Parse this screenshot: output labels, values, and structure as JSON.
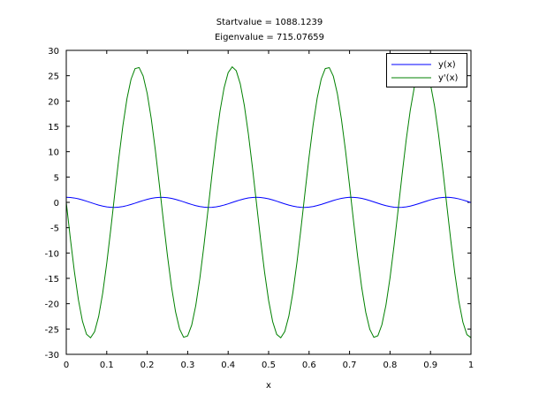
{
  "chart_data": {
    "type": "line",
    "title_lines": [
      "Startvalue =  1088.1239",
      "Eigenvalue = 715.07659"
    ],
    "xlabel": "x",
    "ylabel": "",
    "xlim": [
      0,
      1
    ],
    "ylim": [
      -30,
      30
    ],
    "xticks": [
      0,
      0.1,
      0.2,
      0.3,
      0.4,
      0.5,
      0.6,
      0.7,
      0.8,
      0.9,
      1
    ],
    "xtick_labels": [
      "0",
      "0.1",
      "0.2",
      "0.3",
      "0.4",
      "0.5",
      "0.6",
      "0.7",
      "0.8",
      "0.9",
      "1"
    ],
    "yticks": [
      30,
      25,
      20,
      15,
      10,
      5,
      0,
      -5,
      -10,
      -15,
      -20,
      -25,
      -30
    ],
    "ytick_labels": [
      "30",
      "25",
      "20",
      "15",
      "10",
      "5",
      "0",
      "-5",
      "-10",
      "-15",
      "-20",
      "-25",
      "-30"
    ],
    "grid": false,
    "legend_position": "top-right",
    "x_step": 0.01,
    "series": [
      {
        "name": "y(x)",
        "color": "#0000ff",
        "values": [
          1,
          0.964,
          0.86,
          0.695,
          0.48,
          0.231,
          -0.034,
          -0.297,
          -0.539,
          -0.742,
          -0.893,
          -0.98,
          -0.998,
          -0.944,
          -0.823,
          -0.643,
          -0.419,
          -0.164,
          0.103,
          0.362,
          0.595,
          0.787,
          0.922,
          0.991,
          0.991,
          0.919,
          0.783,
          0.59,
          0.356,
          0.096,
          -0.17,
          -0.425,
          -0.649,
          -0.827,
          -0.946,
          -0.998,
          -0.979,
          -0.89,
          -0.738,
          -0.534,
          -0.291,
          -0.028,
          0.237,
          0.486,
          0.699,
          0.864,
          0.966,
          1.0,
          0.963,
          0.857,
          0.69,
          0.474,
          0.225,
          -0.041,
          -0.303,
          -0.545,
          -0.747,
          -0.896,
          -0.982,
          -0.997,
          -0.942,
          -0.82,
          -0.639,
          -0.413,
          -0.158,
          0.109,
          0.368,
          0.6,
          0.791,
          0.924,
          0.992,
          0.99,
          0.917,
          0.779,
          0.585,
          0.35,
          0.09,
          -0.177,
          -0.431,
          -0.654,
          -0.831,
          -0.948,
          -0.998,
          -0.978,
          -0.887,
          -0.733,
          -0.528,
          -0.285,
          -0.021,
          0.244,
          0.491,
          0.704,
          0.867,
          0.968,
          1.0,
          0.961,
          0.854,
          0.685,
          0.469,
          0.219,
          -0.047
        ]
      },
      {
        "name": "y'(x)",
        "color": "#008000",
        "values": [
          0,
          -7.07,
          -13.64,
          -19.24,
          -23.47,
          -26.03,
          -26.73,
          -25.54,
          -22.53,
          -17.93,
          -12.03,
          -5.29,
          1.83,
          8.82,
          15.18,
          20.47,
          24.29,
          26.39,
          26.61,
          24.94,
          21.49,
          16.51,
          10.37,
          3.48,
          -3.65,
          -10.53,
          -16.65,
          -21.59,
          -25.0,
          -26.63,
          -26.36,
          -24.21,
          -20.35,
          -15.04,
          -8.65,
          -1.66,
          5.46,
          12.19,
          18.07,
          22.62,
          25.6,
          26.74,
          25.98,
          23.38,
          19.12,
          13.49,
          6.91,
          -0.17,
          -7.24,
          -13.79,
          -19.36,
          -23.55,
          -26.06,
          -26.73,
          -25.49,
          -22.44,
          -17.79,
          -11.88,
          -5.12,
          2.0,
          8.99,
          15.32,
          20.57,
          24.36,
          26.41,
          26.59,
          24.88,
          21.4,
          16.37,
          10.21,
          3.31,
          -3.82,
          -10.69,
          -16.79,
          -21.69,
          -25.06,
          -26.64,
          -26.33,
          -24.14,
          -20.25,
          -14.9,
          -8.49,
          -1.49,
          5.62,
          12.34,
          18.18,
          22.72,
          25.64,
          26.74,
          25.94,
          23.3,
          19.0,
          13.34,
          6.73,
          -0.35,
          -7.4,
          -13.93,
          -19.48,
          -23.63,
          -26.1,
          -26.72
        ]
      }
    ]
  }
}
